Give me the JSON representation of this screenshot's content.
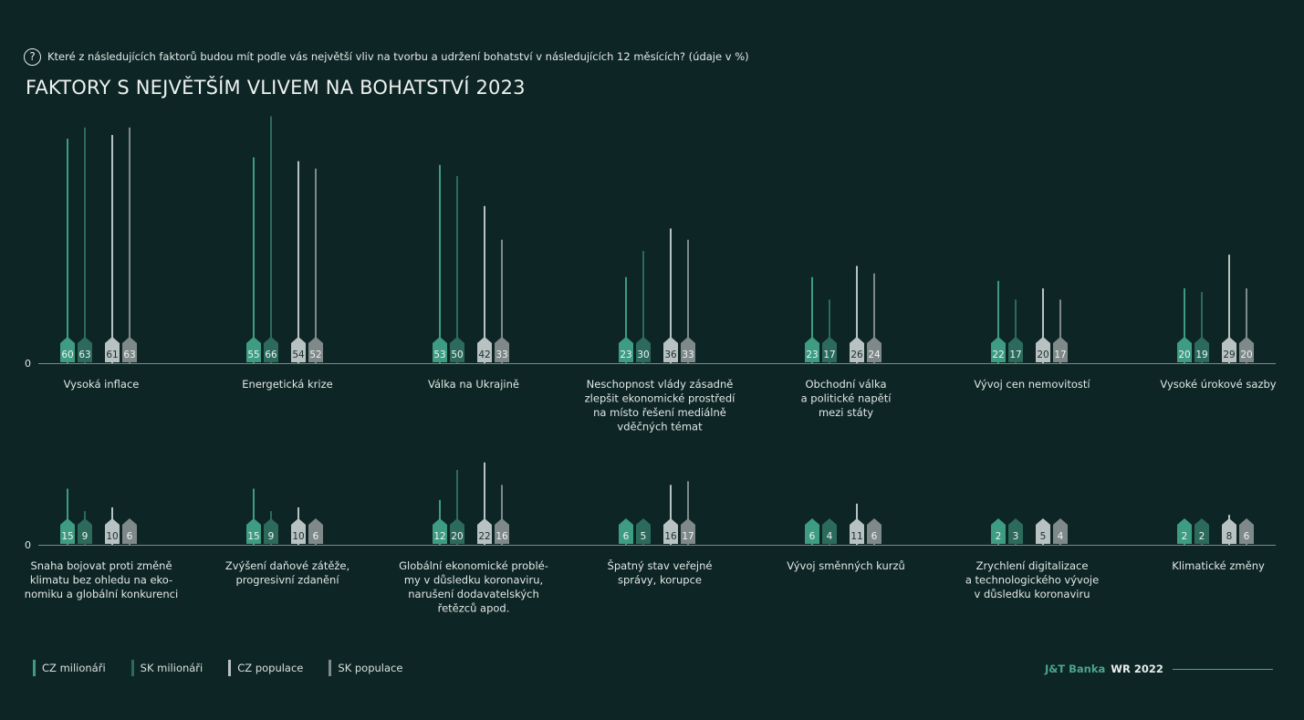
{
  "question": "Které z následujících faktorů budou mít podle vás největší vliv na tvorbu a udržení bohatství v následujících 12 měsících? (údaje v %)",
  "question_icon": "question-mark-icon",
  "question_icon_glyph": "?",
  "title": "FAKTORY S NEJVĚTŠÍM VLIVEM NA BOHATSTVÍ 2023",
  "legend": [
    {
      "label": "CZ milionáři",
      "color": "#3d9c82"
    },
    {
      "label": "SK milionáři",
      "color": "#2c6b5c"
    },
    {
      "label": "CZ populace",
      "color": "#b9c2c2"
    },
    {
      "label": "SK populace",
      "color": "#7f8989"
    }
  ],
  "footer": {
    "brand": "J&T Banka",
    "report": "WR 2022"
  },
  "chart_data": [
    {
      "type": "bar",
      "title": "FAKTORY S NEJVĚTŠÍM VLIVEM NA BOHATSTVÍ 2023",
      "zero_label": "0",
      "ylim": [
        0,
        75
      ],
      "categories": [
        [
          "Vysoká inflace"
        ],
        [
          "Energetická krize"
        ],
        [
          "Válka na Ukrajině"
        ],
        [
          "Neschopnost vlády zásadně",
          "zlepšit ekonomické prostředí",
          "na místo řešení mediálně",
          "vděčných témat"
        ],
        [
          "Obchodní válka",
          "a politické napětí",
          "mezi státy"
        ],
        [
          "Vývoj cen nemovitostí"
        ],
        [
          "Vysoké úrokové sazby"
        ]
      ],
      "series": [
        {
          "name": "CZ milionáři",
          "values": [
            60,
            55,
            53,
            23,
            23,
            22,
            20
          ]
        },
        {
          "name": "SK milionáři",
          "values": [
            63,
            66,
            50,
            30,
            17,
            17,
            19
          ]
        },
        {
          "name": "CZ populace",
          "values": [
            61,
            54,
            42,
            36,
            26,
            20,
            29
          ]
        },
        {
          "name": "SK populace",
          "values": [
            63,
            52,
            33,
            33,
            24,
            17,
            20
          ]
        }
      ]
    },
    {
      "type": "bar",
      "zero_label": "0",
      "ylim": [
        0,
        75
      ],
      "categories": [
        [
          "Snaha bojovat proti změně",
          "klimatu bez ohledu na eko-",
          "nomiku a globální konkurenci"
        ],
        [
          "Zvýšení daňové zátěže,",
          "progresivní zdanění"
        ],
        [
          "Globální ekonomické problé-",
          "my v důsledku koronaviru,",
          "narušení dodavatelských",
          "řetězců apod."
        ],
        [
          "Špatný stav veřejné",
          "správy, korupce"
        ],
        [
          "Vývoj směnných kurzů"
        ],
        [
          "Zrychlení digitalizace",
          "a technologického vývoje",
          "v důsledku koronaviru"
        ],
        [
          "Klimatické změny"
        ]
      ],
      "series": [
        {
          "name": "CZ milionáři",
          "values": [
            15,
            15,
            12,
            6,
            6,
            2,
            2
          ]
        },
        {
          "name": "SK milionáři",
          "values": [
            9,
            9,
            20,
            5,
            4,
            3,
            2
          ]
        },
        {
          "name": "CZ populace",
          "values": [
            10,
            10,
            22,
            16,
            11,
            5,
            8
          ]
        },
        {
          "name": "SK populace",
          "values": [
            6,
            6,
            16,
            17,
            6,
            4,
            6
          ]
        }
      ]
    }
  ]
}
